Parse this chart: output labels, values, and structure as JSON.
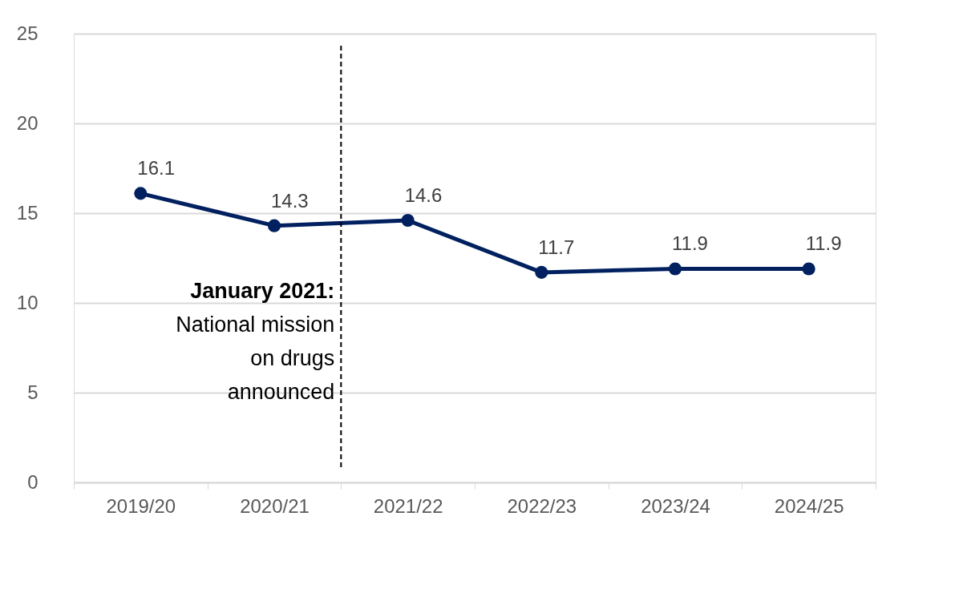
{
  "chart_data": {
    "type": "line",
    "categories": [
      "2019/20",
      "2020/21",
      "2021/22",
      "2022/23",
      "2023/24",
      "2024/25"
    ],
    "series": [
      {
        "color": "#002060",
        "values": [
          16.1,
          14.3,
          14.6,
          11.7,
          11.9,
          11.9
        ]
      }
    ],
    "ylim": [
      0,
      25
    ],
    "yticks": [
      0,
      5,
      10,
      15,
      20,
      25
    ],
    "grid": "y",
    "marker": "circle",
    "line_style": "solid",
    "data_labels": true,
    "ref_lines": [
      {
        "axis": "x",
        "value": "2020/21",
        "label": "January 2021:\nNational mission\non drugs\nannounced",
        "color": "#000000",
        "line_style": "dashed"
      }
    ]
  }
}
